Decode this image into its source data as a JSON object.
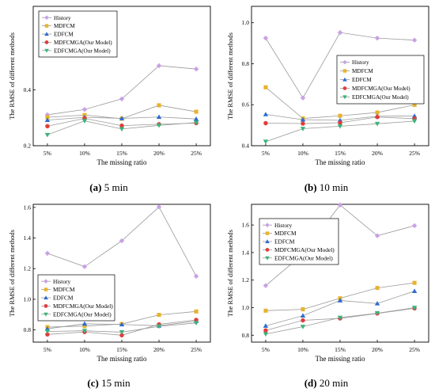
{
  "legend_names": [
    "History",
    "MDFCM",
    "EDFCM",
    "MDFCMGA(Our Model)",
    "EDFCMGA(Our Model)"
  ],
  "colors": {
    "History": "#c9a0e6",
    "MDFCM": "#e8b32c",
    "EDFCM": "#2d6bd1",
    "MDFCMGA": "#e23c3c",
    "EDFCMGA": "#3bb37a"
  },
  "captions": [
    {
      "letter": "(a)",
      "text": "5 min"
    },
    {
      "letter": "(b)",
      "text": "10 min"
    },
    {
      "letter": "(c)",
      "text": "15 min"
    },
    {
      "letter": "(d)",
      "text": "20 min"
    }
  ],
  "chart_data": [
    {
      "type": "line",
      "categories": [
        "5%",
        "10%",
        "15%",
        "20%",
        "25%"
      ],
      "xlabel": "The missing ratio",
      "ylabel": "The RMSE of different methods",
      "ylim": [
        0.2,
        0.7
      ],
      "yticks": [
        0.2,
        0.4
      ],
      "legend": "top-left",
      "series": [
        {
          "name": "History",
          "values": [
            0.311,
            0.33,
            0.368,
            0.487,
            0.475
          ]
        },
        {
          "name": "MDFCM",
          "values": [
            0.302,
            0.31,
            0.297,
            0.345,
            0.322
          ]
        },
        {
          "name": "EDFCM",
          "values": [
            0.292,
            0.302,
            0.298,
            0.303,
            0.296
          ]
        },
        {
          "name": "MDFCMGA(Our Model)",
          "values": [
            0.27,
            0.298,
            0.272,
            0.277,
            0.281
          ]
        },
        {
          "name": "EDFCMGA(Our Model)",
          "values": [
            0.239,
            0.289,
            0.26,
            0.273,
            0.283
          ]
        }
      ]
    },
    {
      "type": "line",
      "categories": [
        "5%",
        "10%",
        "15%",
        "20%",
        "25%"
      ],
      "xlabel": "The missing ratio",
      "ylabel": "The RMSE of different methods",
      "ylim": [
        0.4,
        1.08
      ],
      "yticks": [
        0.4,
        0.6,
        0.8,
        1.0
      ],
      "legend": "top-right",
      "series": [
        {
          "name": "History",
          "values": [
            0.925,
            0.633,
            0.952,
            0.925,
            0.915
          ]
        },
        {
          "name": "MDFCM",
          "values": [
            0.685,
            0.533,
            0.546,
            0.562,
            0.599
          ]
        },
        {
          "name": "EDFCM",
          "values": [
            0.553,
            0.527,
            0.524,
            0.544,
            0.545
          ]
        },
        {
          "name": "MDFCMGA(Our Model)",
          "values": [
            0.51,
            0.508,
            0.512,
            0.54,
            0.532
          ]
        },
        {
          "name": "EDFCMGA(Our Model)",
          "values": [
            0.42,
            0.483,
            0.495,
            0.507,
            0.52
          ]
        }
      ]
    },
    {
      "type": "line",
      "categories": [
        "5%",
        "10%",
        "15%",
        "20%",
        "25%"
      ],
      "xlabel": "The missing ratio",
      "ylabel": "The RMSE of different methods",
      "ylim": [
        0.72,
        1.62
      ],
      "yticks": [
        0.8,
        1.0,
        1.2,
        1.4,
        1.6
      ],
      "legend": "bottom-left",
      "series": [
        {
          "name": "History",
          "values": [
            1.3,
            1.213,
            1.382,
            1.603,
            1.15
          ]
        },
        {
          "name": "MDFCM",
          "values": [
            0.818,
            0.825,
            0.838,
            0.898,
            0.92
          ]
        },
        {
          "name": "EDFCM",
          "values": [
            0.807,
            0.84,
            0.835,
            0.827,
            0.857
          ]
        },
        {
          "name": "MDFCMGA(Our Model)",
          "values": [
            0.77,
            0.786,
            0.765,
            0.836,
            0.865
          ]
        },
        {
          "name": "EDFCMGA(Our Model)",
          "values": [
            0.79,
            0.794,
            0.785,
            0.823,
            0.845
          ]
        }
      ]
    },
    {
      "type": "line",
      "categories": [
        "5%",
        "10%",
        "15%",
        "20%",
        "25%"
      ],
      "xlabel": "The missing ratio",
      "ylabel": "The RMSE of different methods",
      "ylim": [
        0.75,
        1.75
      ],
      "yticks": [
        0.8,
        1.0,
        1.2,
        1.4,
        1.6
      ],
      "legend": "top-left",
      "series": [
        {
          "name": "History",
          "values": [
            1.16,
            1.388,
            1.745,
            1.522,
            1.595
          ]
        },
        {
          "name": "MDFCM",
          "values": [
            0.978,
            0.988,
            1.068,
            1.143,
            1.18
          ]
        },
        {
          "name": "EDFCM",
          "values": [
            0.868,
            0.942,
            1.052,
            1.03,
            1.12
          ]
        },
        {
          "name": "MDFCMGA(Our Model)",
          "values": [
            0.835,
            0.908,
            0.922,
            0.958,
            0.995
          ]
        },
        {
          "name": "EDFCMGA(Our Model)",
          "values": [
            0.808,
            0.862,
            0.928,
            0.96,
            1.0
          ]
        }
      ]
    }
  ]
}
